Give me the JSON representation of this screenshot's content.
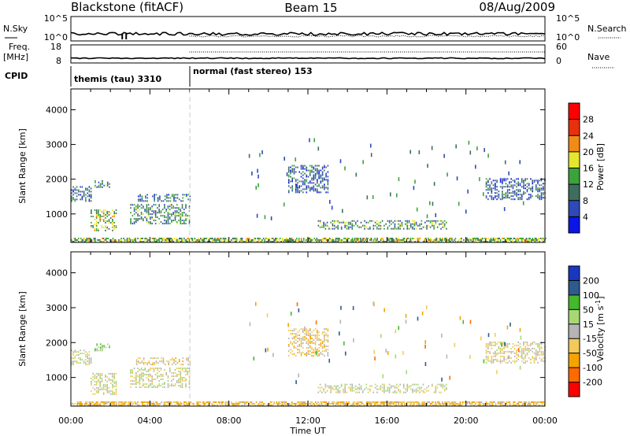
{
  "header": {
    "station": "Blackstone (fitACF)",
    "beam": "Beam 15",
    "date": "08/Aug/2009"
  },
  "strip_labels": {
    "nsky": "N.Sky",
    "nsearch": "N.Search",
    "freq": "Freq.",
    "freq_unit": "[MHz]",
    "nave": "Nave",
    "cpid": "CPID"
  },
  "strip_ticks": {
    "nsky_top": "10^5",
    "nsky_bottom": "10^0",
    "nsearch_top": "10^5",
    "nsearch_bottom": "10^0",
    "freq_top": "18",
    "freq_bottom": "8",
    "nave_top": "60",
    "nave_bottom": "0"
  },
  "cpid_segments": [
    {
      "label": "themis (tau) 3310",
      "start_hour": 0,
      "end_hour": 6
    },
    {
      "label": "normal (fast stereo) 153",
      "start_hour": 6,
      "end_hour": 24
    }
  ],
  "colors": {
    "power": [
      "#0a16e6",
      "#2f49b8",
      "#3d6e5e",
      "#3aa33c",
      "#e6e62e",
      "#f28a16",
      "#e8300c",
      "#ff0000"
    ],
    "velocity": [
      "#ff0000",
      "#ff6a00",
      "#f5a300",
      "#f2ca5c",
      "#b5b5b5",
      "#a7d873",
      "#44b92b",
      "#2e5a8c",
      "#1838c0"
    ]
  },
  "chart_data": [
    {
      "type": "heatmap",
      "title": "",
      "xlabel": "Time UT",
      "ylabel": "Slant Range [km]",
      "xlim": [
        0,
        24
      ],
      "ylim": [
        180,
        4600
      ],
      "x_ticks": [
        "00:00",
        "04:00",
        "08:00",
        "12:00",
        "16:00",
        "20:00",
        "00:00"
      ],
      "y_ticks": [
        1000,
        2000,
        3000,
        4000
      ],
      "colorbar": {
        "label": "Power [dB]",
        "ticks": [
          "4",
          "8",
          "12",
          "16",
          "20",
          "24",
          "28"
        ],
        "range": [
          0,
          30
        ]
      },
      "echo_regions": [
        {
          "hours": [
            0.0,
            1.0
          ],
          "range_km": [
            1350,
            1800
          ],
          "value": 8
        },
        {
          "hours": [
            1.0,
            2.3
          ],
          "range_km": [
            500,
            1100
          ],
          "value": 14
        },
        {
          "hours": [
            1.2,
            2.0
          ],
          "range_km": [
            1750,
            1950
          ],
          "value": 10
        },
        {
          "hours": [
            3.3,
            6.0
          ],
          "range_km": [
            1350,
            1550
          ],
          "value": 8
        },
        {
          "hours": [
            3.0,
            6.0
          ],
          "range_km": [
            700,
            1250
          ],
          "value": 10
        },
        {
          "hours": [
            11.0,
            13.0
          ],
          "range_km": [
            1600,
            2400
          ],
          "value": 7
        },
        {
          "hours": [
            12.5,
            19.0
          ],
          "range_km": [
            550,
            800
          ],
          "value": 11
        },
        {
          "hours": [
            21.0,
            24.0
          ],
          "range_km": [
            1400,
            2000
          ],
          "value": 7
        },
        {
          "hours": [
            0.0,
            24.0
          ],
          "range_km": [
            180,
            300
          ],
          "value": 14
        }
      ]
    },
    {
      "type": "heatmap",
      "title": "",
      "xlabel": "Time UT",
      "ylabel": "Slant Range [km]",
      "xlim": [
        0,
        24
      ],
      "ylim": [
        180,
        4600
      ],
      "x_ticks": [
        "00:00",
        "04:00",
        "08:00",
        "12:00",
        "16:00",
        "20:00",
        "00:00"
      ],
      "y_ticks": [
        1000,
        2000,
        3000,
        4000
      ],
      "colorbar": {
        "label": "Velocity [m s^-1]",
        "ticks": [
          "200",
          "100",
          "50",
          "15",
          "-15",
          "-50",
          "-100",
          "-200"
        ],
        "range": [
          -250,
          250
        ]
      },
      "echo_regions": [
        {
          "hours": [
            0.0,
            1.0
          ],
          "range_km": [
            1350,
            1800
          ],
          "value": 0
        },
        {
          "hours": [
            1.0,
            2.3
          ],
          "range_km": [
            500,
            1100
          ],
          "value": 0
        },
        {
          "hours": [
            1.2,
            2.0
          ],
          "range_km": [
            1750,
            1950
          ],
          "value": 40
        },
        {
          "hours": [
            3.3,
            6.0
          ],
          "range_km": [
            1350,
            1550
          ],
          "value": -20
        },
        {
          "hours": [
            3.0,
            6.0
          ],
          "range_km": [
            700,
            1250
          ],
          "value": 0
        },
        {
          "hours": [
            11.0,
            13.0
          ],
          "range_km": [
            1600,
            2400
          ],
          "value": -30
        },
        {
          "hours": [
            12.5,
            19.0
          ],
          "range_km": [
            550,
            800
          ],
          "value": 0
        },
        {
          "hours": [
            21.0,
            24.0
          ],
          "range_km": [
            1400,
            2000
          ],
          "value": -10
        },
        {
          "hours": [
            0.0,
            24.0
          ],
          "range_km": [
            180,
            300
          ],
          "value": -40
        }
      ]
    }
  ]
}
